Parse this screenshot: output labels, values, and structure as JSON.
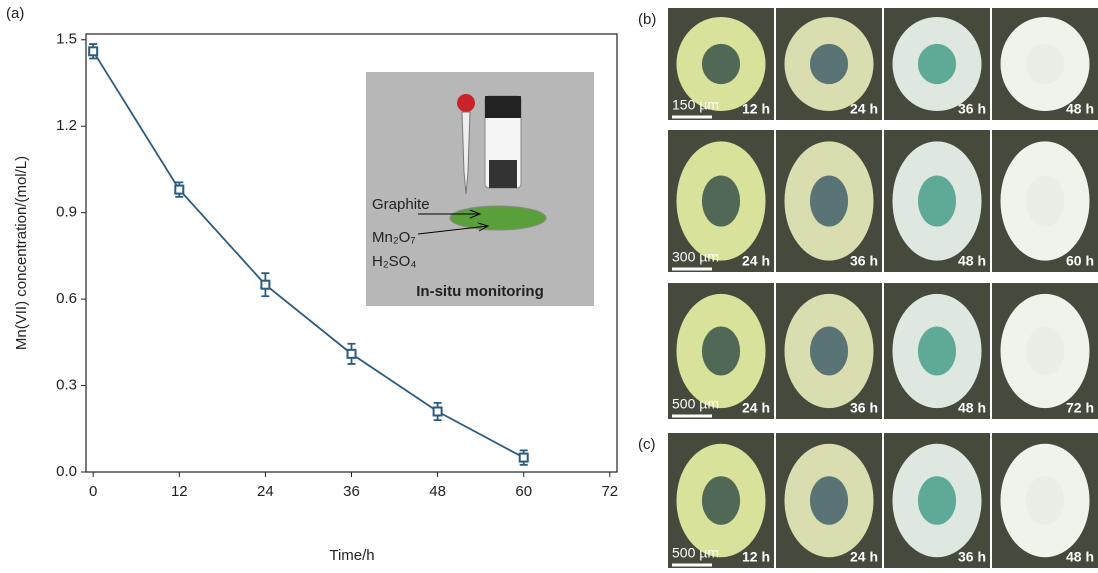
{
  "chart_data": {
    "type": "line",
    "panel_label": "(a)",
    "x_label": "Time/h",
    "y_label": "Mn(VII) concentration/(mol/L)",
    "x": [
      0,
      12,
      24,
      36,
      48,
      60
    ],
    "values": [
      1.46,
      0.98,
      0.65,
      0.41,
      0.21,
      0.05
    ],
    "errors": [
      0.025,
      0.025,
      0.04,
      0.035,
      0.03,
      0.025
    ],
    "color": "#2b5c80",
    "xlim": [
      -1,
      73
    ],
    "xticks": [
      0,
      12,
      24,
      36,
      48,
      60,
      72
    ],
    "ylim": [
      0,
      1.52
    ],
    "yticks": [
      {
        "value": 0,
        "label": "0.0"
      },
      0.3,
      0.6,
      0.9,
      1.2,
      1.5
    ],
    "inset": {
      "labels": [
        "Graphite",
        "Mn₂O₇",
        "H₂SO₄"
      ],
      "caption": "In-situ monitoring"
    }
  },
  "photos": {
    "panels": [
      {
        "label": "(b)",
        "rows": [
          {
            "scale": "150 µm",
            "times": [
              "12 h",
              "24 h",
              "36 h",
              "48 h"
            ]
          },
          {
            "scale": "300 µm",
            "times": [
              "24 h",
              "36 h",
              "48 h",
              "60 h"
            ]
          },
          {
            "scale": "500 µm",
            "times": [
              "24 h",
              "36 h",
              "48 h",
              "72 h"
            ]
          }
        ]
      },
      {
        "label": "(c)",
        "rows": [
          {
            "scale": "500 µm",
            "times": [
              "12 h",
              "24 h",
              "36 h",
              "48 h"
            ]
          }
        ]
      }
    ]
  }
}
